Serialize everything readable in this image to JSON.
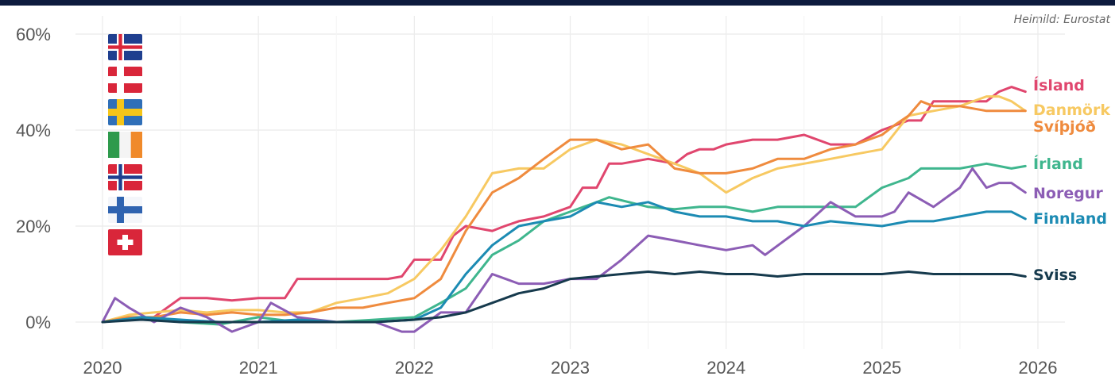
{
  "chart_data": {
    "type": "line",
    "title": "",
    "xlabel": "",
    "ylabel": "",
    "source": "Heimild: Eurostat",
    "xlim": [
      2020,
      2026
    ],
    "ylim": [
      -4,
      62
    ],
    "x_ticks": [
      {
        "value": 2020,
        "label": "2020"
      },
      {
        "value": 2021,
        "label": "2021"
      },
      {
        "value": 2022,
        "label": "2022"
      },
      {
        "value": 2023,
        "label": "2023"
      },
      {
        "value": 2024,
        "label": "2024"
      },
      {
        "value": 2025,
        "label": "2025"
      },
      {
        "value": 2026,
        "label": "2026"
      }
    ],
    "y_ticks": [
      {
        "value": 0,
        "label": "0%"
      },
      {
        "value": 20,
        "label": "20%"
      },
      {
        "value": 40,
        "label": "40%"
      },
      {
        "value": 60,
        "label": "60%"
      }
    ],
    "grid": true,
    "legend": "flags at top-left, end labels at right",
    "flags": [
      {
        "country": "iceland",
        "icon": "iceland-flag-icon"
      },
      {
        "country": "denmark",
        "icon": "denmark-flag-icon"
      },
      {
        "country": "sweden",
        "icon": "sweden-flag-icon"
      },
      {
        "country": "ireland",
        "icon": "ireland-flag-icon"
      },
      {
        "country": "norway",
        "icon": "norway-flag-icon"
      },
      {
        "country": "finland",
        "icon": "finland-flag-icon"
      },
      {
        "country": "switzerland",
        "icon": "switzerland-flag-icon"
      }
    ],
    "series": [
      {
        "name": "Ísland",
        "color": "#e0466e",
        "x": [
          2020.0,
          2020.17,
          2020.33,
          2020.5,
          2020.67,
          2020.83,
          2021.0,
          2021.17,
          2021.25,
          2021.33,
          2021.5,
          2021.67,
          2021.83,
          2021.92,
          2022.0,
          2022.17,
          2022.25,
          2022.33,
          2022.5,
          2022.58,
          2022.67,
          2022.83,
          2023.0,
          2023.08,
          2023.17,
          2023.25,
          2023.33,
          2023.5,
          2023.67,
          2023.75,
          2023.83,
          2023.92,
          2024.0,
          2024.17,
          2024.33,
          2024.5,
          2024.67,
          2024.83,
          2025.0,
          2025.17,
          2025.25,
          2025.33,
          2025.5,
          2025.67,
          2025.75,
          2025.83,
          2025.92
        ],
        "values": [
          0,
          0.5,
          1,
          5,
          5,
          4.5,
          5,
          5,
          9,
          9,
          9,
          9,
          9,
          9.5,
          13,
          13,
          18,
          20,
          19,
          20,
          21,
          22,
          24,
          28,
          28,
          33,
          33,
          34,
          33,
          35,
          36,
          36,
          37,
          38,
          38,
          39,
          37,
          37,
          40,
          42,
          42,
          46,
          46,
          46,
          48,
          49,
          48
        ]
      },
      {
        "name": "Danmörk",
        "color": "#f7c962",
        "x": [
          2020.0,
          2020.17,
          2020.33,
          2020.5,
          2020.67,
          2020.83,
          2021.0,
          2021.17,
          2021.33,
          2021.5,
          2021.67,
          2021.83,
          2022.0,
          2022.17,
          2022.33,
          2022.5,
          2022.67,
          2022.83,
          2023.0,
          2023.17,
          2023.33,
          2023.5,
          2023.67,
          2023.83,
          2024.0,
          2024.17,
          2024.33,
          2024.5,
          2024.67,
          2024.83,
          2025.0,
          2025.17,
          2025.33,
          2025.5,
          2025.67,
          2025.75,
          2025.83,
          2025.92
        ],
        "values": [
          0,
          1.5,
          2,
          2.5,
          2,
          2.5,
          2.5,
          2,
          2,
          4,
          5,
          6,
          9,
          15,
          22,
          31,
          32,
          32,
          36,
          38,
          37,
          35,
          33,
          31,
          27,
          30,
          32,
          33,
          34,
          35,
          36,
          43,
          44,
          45,
          47,
          47,
          46,
          44
        ]
      },
      {
        "name": "Svíþjóð",
        "color": "#ef8b3e",
        "x": [
          2020.0,
          2020.17,
          2020.33,
          2020.5,
          2020.67,
          2020.83,
          2021.0,
          2021.17,
          2021.33,
          2021.5,
          2021.67,
          2021.83,
          2022.0,
          2022.17,
          2022.33,
          2022.5,
          2022.67,
          2022.83,
          2023.0,
          2023.17,
          2023.33,
          2023.5,
          2023.67,
          2023.83,
          2024.0,
          2024.17,
          2024.33,
          2024.5,
          2024.67,
          2024.83,
          2025.0,
          2025.08,
          2025.17,
          2025.25,
          2025.33,
          2025.5,
          2025.67,
          2025.83,
          2025.92
        ],
        "values": [
          0,
          1,
          1,
          2,
          1.5,
          2,
          1.5,
          1.5,
          2,
          3,
          3,
          4,
          5,
          9,
          19,
          27,
          30,
          34,
          38,
          38,
          36,
          37,
          32,
          31,
          31,
          32,
          34,
          34,
          36,
          37,
          39,
          41,
          43,
          46,
          45,
          45,
          44,
          44,
          44
        ]
      },
      {
        "name": "Írland",
        "color": "#3fb68e",
        "x": [
          2020.0,
          2020.25,
          2020.5,
          2020.75,
          2021.0,
          2021.25,
          2021.5,
          2021.75,
          2022.0,
          2022.17,
          2022.33,
          2022.5,
          2022.67,
          2022.83,
          2023.0,
          2023.17,
          2023.25,
          2023.5,
          2023.67,
          2023.83,
          2024.0,
          2024.17,
          2024.33,
          2024.5,
          2024.67,
          2024.83,
          2025.0,
          2025.17,
          2025.25,
          2025.5,
          2025.67,
          2025.83,
          2025.92
        ],
        "values": [
          0,
          1,
          0,
          -0.5,
          1,
          0,
          0,
          0.5,
          1,
          4,
          7,
          14,
          17,
          21,
          23,
          25,
          26,
          24,
          23.5,
          24,
          24,
          23,
          24,
          24,
          24,
          24,
          28,
          30,
          32,
          32,
          33,
          32,
          32.5
        ]
      },
      {
        "name": "Noregur",
        "color": "#8c5db5",
        "x": [
          2020.0,
          2020.08,
          2020.17,
          2020.33,
          2020.5,
          2020.67,
          2020.83,
          2021.0,
          2021.08,
          2021.25,
          2021.5,
          2021.75,
          2021.92,
          2022.0,
          2022.17,
          2022.33,
          2022.5,
          2022.67,
          2022.83,
          2023.0,
          2023.17,
          2023.33,
          2023.5,
          2023.67,
          2023.83,
          2024.0,
          2024.17,
          2024.25,
          2024.5,
          2024.67,
          2024.83,
          2025.0,
          2025.08,
          2025.17,
          2025.33,
          2025.5,
          2025.58,
          2025.67,
          2025.75,
          2025.83,
          2025.92
        ],
        "values": [
          0,
          5,
          3,
          0,
          3,
          1,
          -2,
          0,
          4,
          1,
          0,
          0,
          -2,
          -2,
          2,
          2,
          10,
          8,
          8,
          9,
          9,
          13,
          18,
          17,
          16,
          15,
          16,
          14,
          20,
          25,
          22,
          22,
          23,
          27,
          24,
          28,
          32,
          28,
          29,
          29,
          27
        ]
      },
      {
        "name": "Finnland",
        "color": "#1c8bb3",
        "x": [
          2020.0,
          2020.25,
          2020.5,
          2020.75,
          2021.0,
          2021.25,
          2021.5,
          2021.75,
          2022.0,
          2022.17,
          2022.33,
          2022.5,
          2022.67,
          2022.83,
          2023.0,
          2023.17,
          2023.33,
          2023.5,
          2023.67,
          2023.83,
          2024.0,
          2024.17,
          2024.33,
          2024.5,
          2024.67,
          2024.83,
          2025.0,
          2025.17,
          2025.33,
          2025.5,
          2025.67,
          2025.83,
          2025.92
        ],
        "values": [
          0,
          1,
          0.5,
          0,
          0,
          0.5,
          0,
          0,
          0.5,
          3,
          10,
          16,
          20,
          21,
          22,
          25,
          24,
          25,
          23,
          22,
          22,
          21,
          21,
          20,
          21,
          20.5,
          20,
          21,
          21,
          22,
          23,
          23,
          21.5
        ]
      },
      {
        "name": "Sviss",
        "color": "#163a4d",
        "x": [
          2020.0,
          2020.25,
          2020.5,
          2020.75,
          2021.0,
          2021.25,
          2021.5,
          2021.75,
          2022.0,
          2022.17,
          2022.33,
          2022.5,
          2022.67,
          2022.83,
          2023.0,
          2023.17,
          2023.33,
          2023.5,
          2023.67,
          2023.83,
          2024.0,
          2024.17,
          2024.33,
          2024.5,
          2024.67,
          2024.83,
          2025.0,
          2025.17,
          2025.33,
          2025.5,
          2025.67,
          2025.83,
          2025.92
        ],
        "values": [
          0,
          0.5,
          0,
          0,
          0,
          0,
          0,
          0,
          0.5,
          1,
          2,
          4,
          6,
          7,
          9,
          9.5,
          10,
          10.5,
          10,
          10.5,
          10,
          10,
          9.5,
          10,
          10,
          10,
          10,
          10.5,
          10,
          10,
          10,
          10,
          9.5
        ]
      }
    ]
  }
}
